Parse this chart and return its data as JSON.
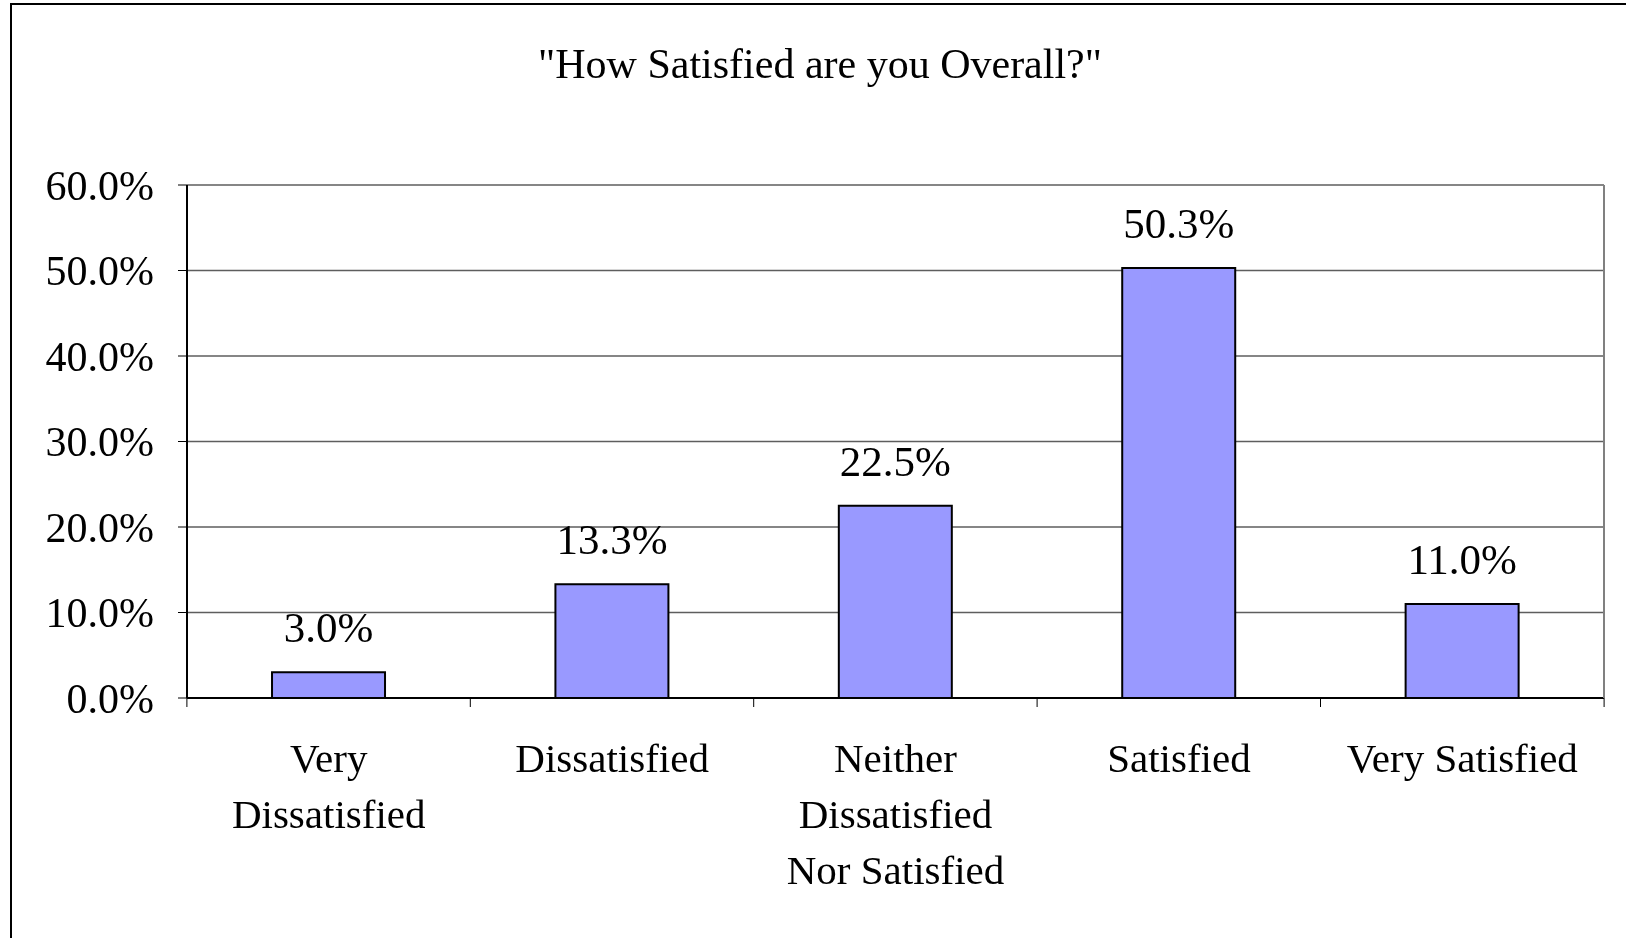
{
  "chart_data": {
    "type": "bar",
    "title": "\"How Satisfied are you Overall?\"",
    "categories": [
      "Very Dissatisfied",
      "Dissatisfied",
      "Neither Dissatisfied Nor Satisfied",
      "Satisfied",
      "Very Satisfied"
    ],
    "values": [
      3.0,
      13.3,
      22.5,
      50.3,
      11.0
    ],
    "color": "#9999ff",
    "value_labels": [
      "3.0%",
      "13.3%",
      "22.5%",
      "50.3%",
      "11.0%"
    ],
    "ylim": [
      0,
      60
    ],
    "yticks": [
      {
        "value": 0,
        "label": "0.0%"
      },
      {
        "value": 10,
        "label": "10.0%"
      },
      {
        "value": 20,
        "label": "20.0%"
      },
      {
        "value": 30,
        "label": "30.0%"
      },
      {
        "value": 40,
        "label": "40.0%"
      },
      {
        "value": 50,
        "label": "50.0%"
      },
      {
        "value": 60,
        "label": "60.0%"
      }
    ],
    "grid": "y"
  }
}
